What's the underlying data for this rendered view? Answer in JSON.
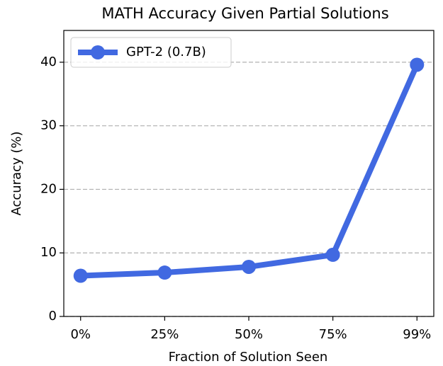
{
  "chart_data": {
    "type": "line",
    "title": "MATH Accuracy Given Partial Solutions",
    "x_label": "Fraction of Solution Seen",
    "y_label": "Accuracy (%)",
    "categories": [
      "0%",
      "25%",
      "50%",
      "75%",
      "99%"
    ],
    "series": [
      {
        "name": "GPT-2 (0.7B)",
        "color": "#4169e1",
        "values": [
          6.4,
          6.9,
          7.8,
          9.7,
          39.6
        ]
      }
    ],
    "ylim": [
      0,
      45
    ],
    "yticks": [
      0,
      10,
      20,
      30,
      40
    ],
    "grid": true,
    "legend": "upper left"
  }
}
